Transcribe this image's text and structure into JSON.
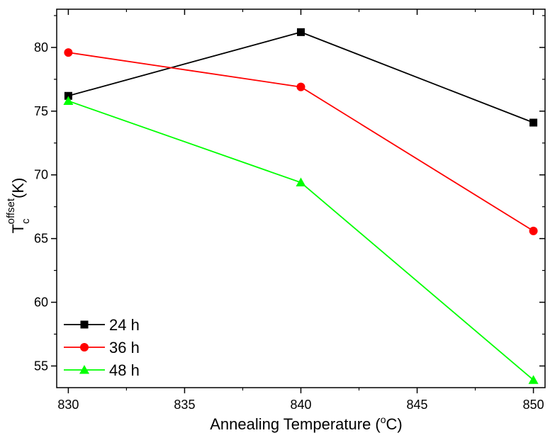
{
  "chart_data": {
    "type": "line",
    "x": [
      830,
      840,
      850
    ],
    "xlim": [
      829.5,
      850.5
    ],
    "ylim": [
      53.3,
      83
    ],
    "xticks": [
      830,
      835,
      840,
      845,
      850
    ],
    "yticks": [
      55,
      60,
      65,
      70,
      75,
      80
    ],
    "xticks_minor": [
      832.5,
      837.5,
      842.5,
      847.5
    ],
    "yticks_minor": [
      57.5,
      62.5,
      67.5,
      72.5,
      77.5,
      82.5
    ],
    "xlabel_main": "Annealing Temperature (",
    "xlabel_sup": "o",
    "xlabel_tail": "C)",
    "ylabel_main": "T",
    "ylabel_sub": "c",
    "ylabel_sup": "offset",
    "ylabel_tail": "(K)",
    "legend_position": "bottom-left",
    "grid": false,
    "series": [
      {
        "name": "24 h",
        "values": [
          76.2,
          81.2,
          74.1
        ],
        "color": "#000000",
        "marker": "square"
      },
      {
        "name": "36 h",
        "values": [
          79.6,
          76.9,
          65.6
        ],
        "color": "#ff0000",
        "marker": "circle"
      },
      {
        "name": "48 h",
        "values": [
          75.8,
          69.4,
          53.9
        ],
        "color": "#00ff00",
        "marker": "triangle"
      }
    ]
  }
}
